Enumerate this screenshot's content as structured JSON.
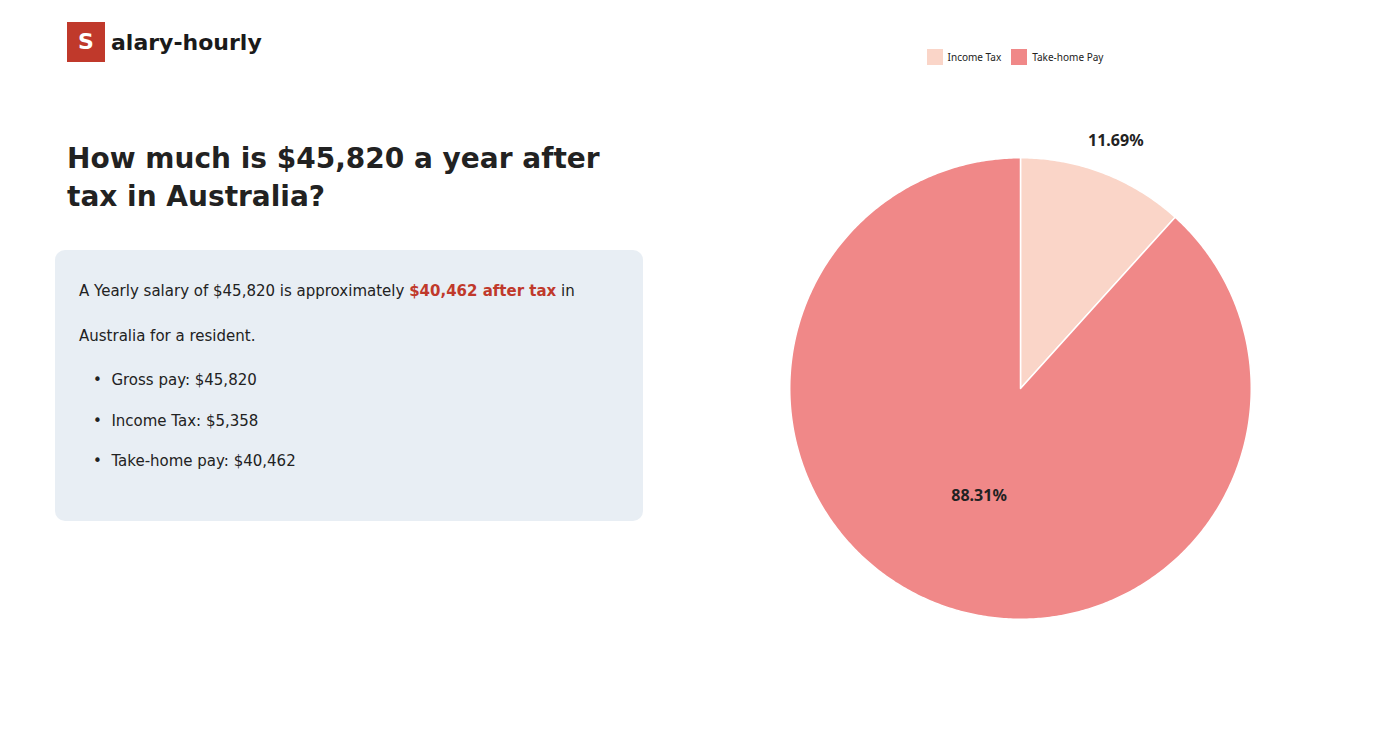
{
  "chart_data": {
    "type": "pie",
    "title": "How much is $45,820 a year after tax in Australia?",
    "categories": [
      "Income Tax",
      "Take-home Pay"
    ],
    "values": [
      11.69,
      88.31
    ],
    "value_labels": [
      "11.69%",
      "88.31%"
    ],
    "colors": [
      "#fad5c8",
      "#f08888"
    ],
    "data_labels": true,
    "legend": "top",
    "annotations": [
      [
        {
          "text": "S",
          "color": "#c0392b"
        },
        {
          "text": "alary-hourly"
        }
      ],
      [
        {
          "text": "A Yearly salary of $45,820 is approximately "
        },
        {
          "text": "$40,462 after tax",
          "color": "#c0392b"
        },
        {
          "text": " in"
        }
      ],
      [
        {
          "text": "Australia for a resident."
        }
      ],
      [
        {
          "text": "•  Gross pay: $45,820"
        }
      ],
      [
        {
          "text": "•  Income Tax: $5,358"
        }
      ],
      [
        {
          "text": "•  Take-home pay: $40,462"
        }
      ]
    ]
  }
}
